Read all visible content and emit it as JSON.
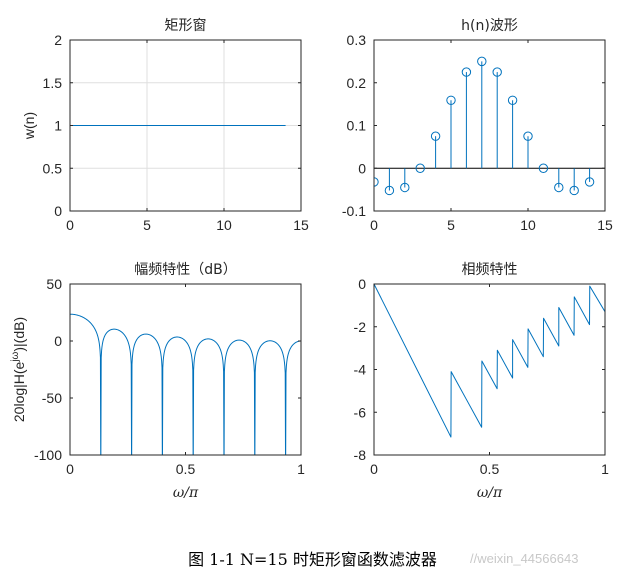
{
  "caption": "图 1-1 N=15 时矩形窗函数滤波器",
  "watermark": "//weixin_44566643",
  "colors": {
    "series": "#0072BD",
    "axis": "#262626",
    "grid": "#dfdfdf"
  },
  "chart_data": [
    {
      "type": "line",
      "title": "矩形窗",
      "xlabel": "",
      "ylabel": "w(n)",
      "xlim": [
        0,
        15
      ],
      "ylim": [
        0,
        2
      ],
      "xticks": [
        "0",
        "5",
        "10",
        "15"
      ],
      "yticks": [
        "0",
        "0.5",
        "1",
        "1.5",
        "2"
      ],
      "grid": true,
      "series": [
        {
          "x": [
            0,
            14
          ],
          "y": [
            1,
            1
          ]
        }
      ]
    },
    {
      "type": "scatter",
      "title": "h(n)波形",
      "xlabel": "",
      "ylabel": "",
      "xlim": [
        0,
        15
      ],
      "ylim": [
        -0.1,
        0.3
      ],
      "xticks": [
        "0",
        "5",
        "10",
        "15"
      ],
      "yticks": [
        "-0.1",
        "0",
        "0.1",
        "0.2",
        "0.3"
      ],
      "grid": false,
      "stem": true,
      "series": [
        {
          "x": [
            0,
            1,
            2,
            3,
            4,
            5,
            6,
            7,
            8,
            9,
            10,
            11,
            12,
            13,
            14
          ],
          "y": [
            -0.032,
            -0.052,
            -0.045,
            0.0,
            0.075,
            0.159,
            0.225,
            0.25,
            0.225,
            0.159,
            0.075,
            0.0,
            -0.045,
            -0.052,
            -0.032
          ]
        }
      ]
    },
    {
      "type": "line",
      "title": "幅频特性（dB）",
      "xlabel": "ω/π",
      "ylabel": "20log|H(e^{jω})|(dB)",
      "xlim": [
        0,
        1
      ],
      "ylim": [
        -100,
        50
      ],
      "xticks": [
        "0",
        "0.5",
        "1"
      ],
      "yticks": [
        "-100",
        "-50",
        "0",
        "50"
      ],
      "grid": false,
      "series": [
        {
          "x": [],
          "y": []
        }
      ]
    },
    {
      "type": "line",
      "title": "相频特性",
      "xlabel": "ω/π",
      "ylabel": "",
      "xlim": [
        0,
        1
      ],
      "ylim": [
        -8,
        0
      ],
      "xticks": [
        "0",
        "0.5",
        "1"
      ],
      "yticks": [
        "-8",
        "-6",
        "-4",
        "-2",
        "0"
      ],
      "grid": false,
      "series": [
        {
          "x": [
            0,
            0.333,
            0.334,
            0.4,
            0.466,
            0.467,
            0.533,
            0.534,
            0.6,
            0.6,
            0.666,
            0.667,
            0.733,
            0.734,
            0.8,
            0.8,
            0.866,
            0.867,
            0.933,
            0.934,
            1.0
          ],
          "y": [
            0,
            -7.16,
            -4.1,
            -5.4,
            -6.7,
            -3.6,
            -4.9,
            -3.1,
            -4.4,
            -2.6,
            -3.9,
            -2.1,
            -3.4,
            -1.6,
            -2.9,
            -1.1,
            -2.4,
            -0.6,
            -1.9,
            -0.1,
            -1.3
          ]
        }
      ]
    }
  ]
}
